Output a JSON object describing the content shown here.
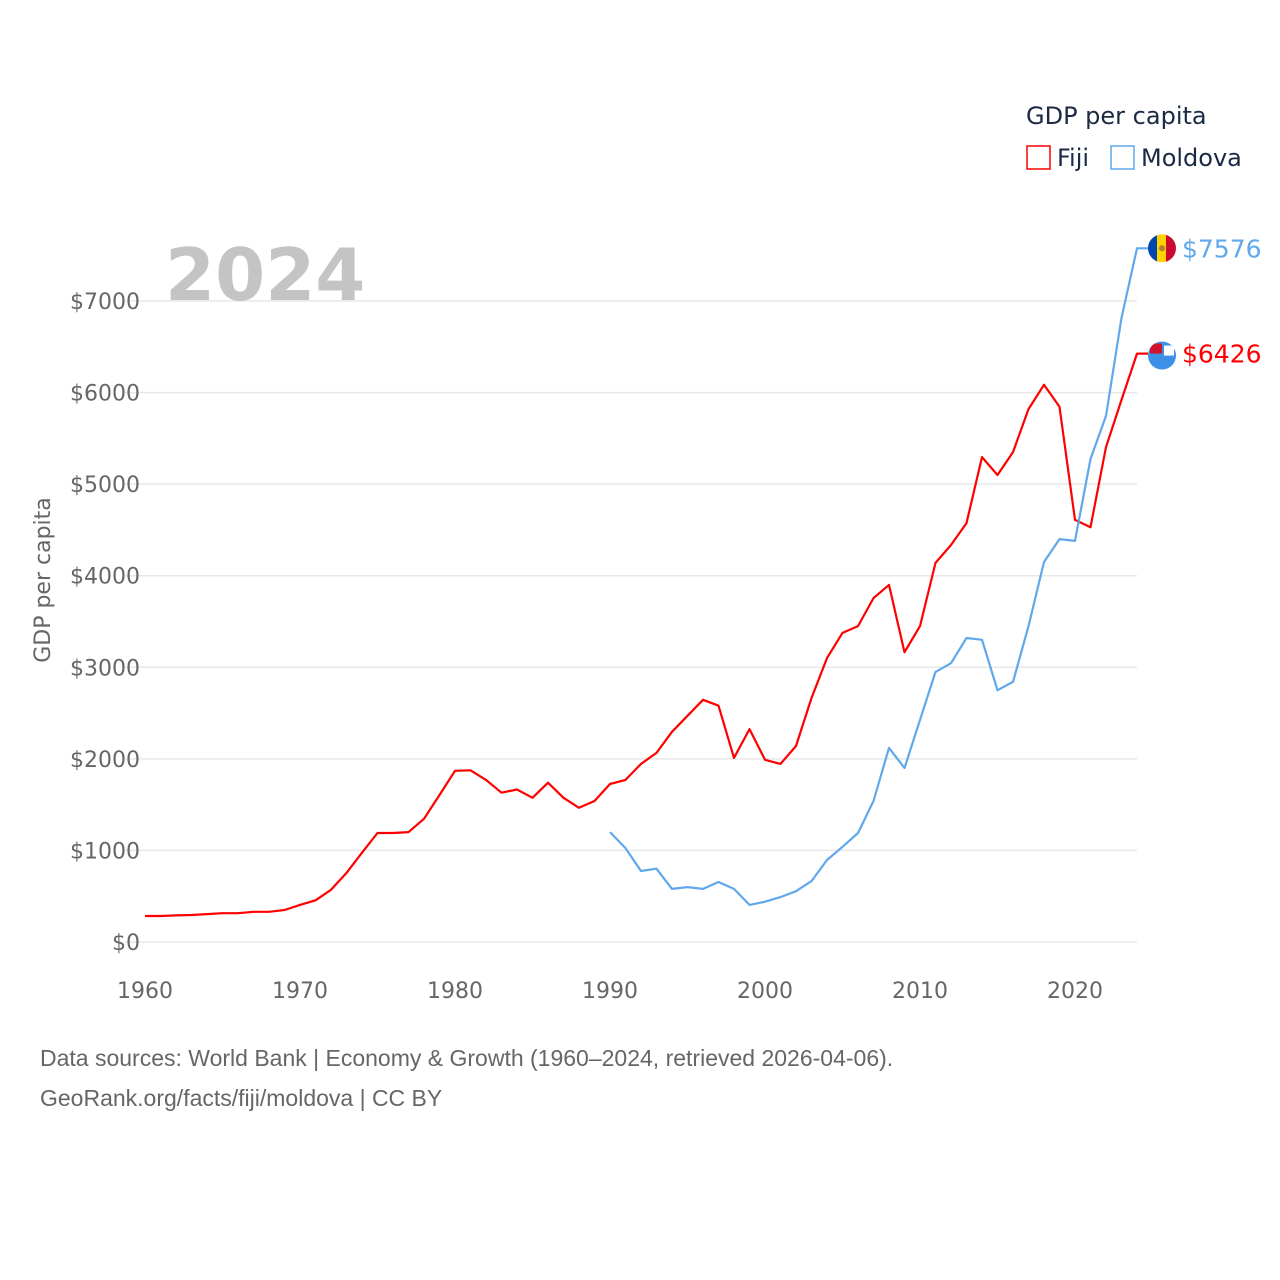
{
  "chart_data": {
    "type": "line",
    "title": "GDP per capita",
    "year_label": "2024",
    "xlabel": "",
    "ylabel": "GDP per capita",
    "xlim": [
      1960,
      2024
    ],
    "ylim": [
      0,
      7600
    ],
    "x_ticks": [
      1960,
      1970,
      1980,
      1990,
      2000,
      2010,
      2020
    ],
    "y_ticks": [
      0,
      1000,
      2000,
      3000,
      4000,
      5000,
      6000,
      7000
    ],
    "y_tick_labels": [
      "$0",
      "$1000",
      "$2000",
      "$3000",
      "$4000",
      "$5000",
      "$6000",
      "$7000"
    ],
    "grid": true,
    "legend_position": "top-right",
    "series": [
      {
        "name": "Fiji",
        "color": "#ff0000",
        "end_label": "$6426",
        "flag": "fiji-flag",
        "start_year": 1960,
        "values": [
          284,
          284,
          290,
          295,
          305,
          315,
          315,
          330,
          330,
          350,
          405,
          455,
          570,
          755,
          975,
          1190,
          1190,
          1200,
          1345,
          1605,
          1870,
          1875,
          1770,
          1630,
          1665,
          1575,
          1740,
          1575,
          1465,
          1540,
          1725,
          1770,
          1945,
          2065,
          2295,
          2470,
          2645,
          2580,
          2010,
          2325,
          1990,
          1945,
          2140,
          2665,
          3100,
          3375,
          3450,
          3755,
          3900,
          3165,
          3450,
          4140,
          4335,
          4575,
          5295,
          5100,
          5350,
          5820,
          6085,
          5845,
          4610,
          4530,
          5405,
          5920,
          6426
        ]
      },
      {
        "name": "Moldova",
        "color": "#5fa8ec",
        "end_label": "$7576",
        "flag": "moldova-flag",
        "start_year": 1990,
        "values": [
          1200,
          1025,
          775,
          800,
          580,
          600,
          580,
          655,
          580,
          405,
          440,
          490,
          555,
          665,
          895,
          1040,
          1190,
          1540,
          2120,
          1900,
          2425,
          2950,
          3045,
          3320,
          3300,
          2750,
          2840,
          3450,
          4150,
          4400,
          4380,
          5275,
          5745,
          6815,
          7576
        ]
      }
    ]
  },
  "footer": {
    "line1": "Data sources: World Bank | Economy & Growth (1960–2024, retrieved 2026-04-06).",
    "line2": "GeoRank.org/facts/fiji/moldova | CC BY"
  }
}
